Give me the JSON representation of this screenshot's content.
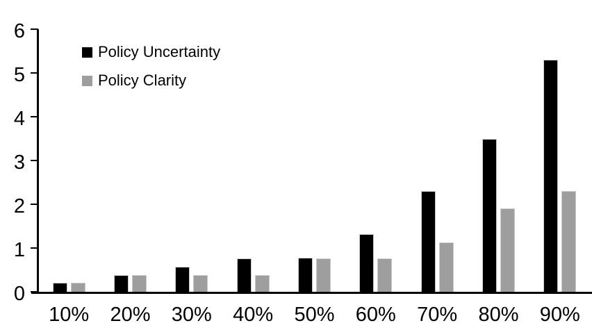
{
  "chart_data": {
    "type": "bar",
    "title": "",
    "xlabel": "",
    "ylabel": "",
    "categories": [
      "10%",
      "20%",
      "30%",
      "40%",
      "50%",
      "60%",
      "70%",
      "80%",
      "90%"
    ],
    "series": [
      {
        "name": "Policy Uncertainty",
        "color": "#000000",
        "values": [
          0.2,
          0.38,
          0.57,
          0.76,
          0.78,
          1.32,
          2.3,
          3.5,
          5.3
        ]
      },
      {
        "name": "Policy Clarity",
        "color": "#9e9e9e",
        "values": [
          0.2,
          0.38,
          0.38,
          0.38,
          0.77,
          0.77,
          1.13,
          1.9,
          2.3
        ]
      }
    ],
    "ylim": [
      0,
      6
    ],
    "y_ticks": [
      0,
      1,
      2,
      3,
      4,
      5,
      6
    ],
    "grid": false,
    "legend_position": "inside-top-left",
    "axis_color": "#000000",
    "background_color": "#ffffff"
  }
}
